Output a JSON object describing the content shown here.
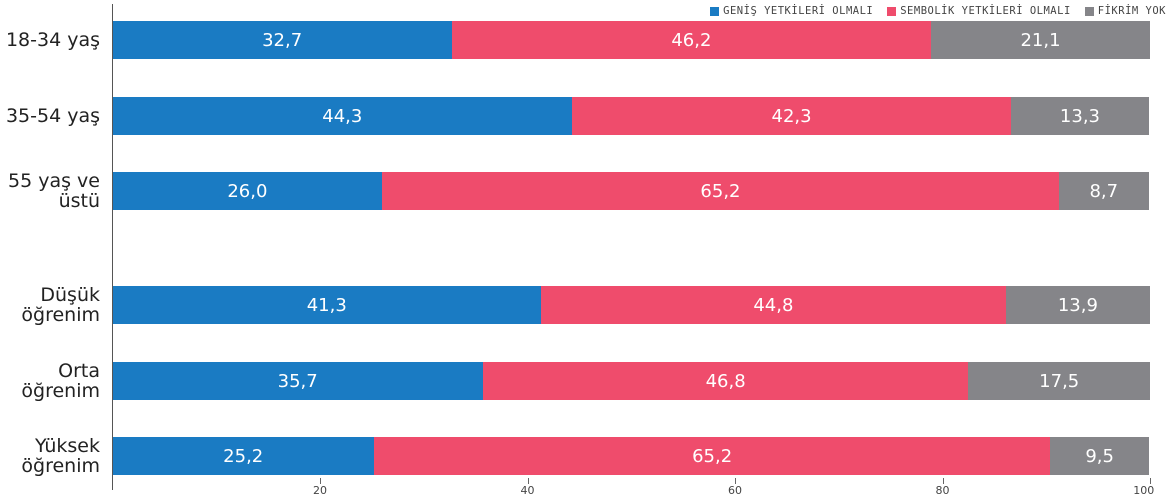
{
  "chart_data": {
    "type": "stacked-bar-horizontal",
    "categories": [
      "18-34 yaş",
      "35-54 yaş",
      "55 yaş ve üstü",
      "Düşük öğrenim",
      "Orta öğrenim",
      "Yüksek öğrenim"
    ],
    "series": [
      {
        "name": "GENİŞ YETKİLERİ OLMALI",
        "color": "#1a7bc3",
        "values": [
          32.7,
          44.3,
          26.0,
          41.3,
          35.7,
          25.2
        ],
        "value_labels": [
          "32,7",
          "44,3",
          "26,0",
          "41,3",
          "35,7",
          "25,2"
        ]
      },
      {
        "name": "SEMBOLİK YETKİLERİ OLMALI",
        "color": "#ef4c6c",
        "values": [
          46.2,
          42.3,
          65.2,
          44.8,
          46.8,
          65.2
        ],
        "value_labels": [
          "46,2",
          "42,3",
          "65,2",
          "44,8",
          "46,8",
          "65,2"
        ]
      },
      {
        "name": "FİKRİM YOK",
        "color": "#858589",
        "values": [
          21.1,
          13.3,
          8.7,
          13.9,
          17.5,
          9.5
        ],
        "value_labels": [
          "21,1",
          "13,3",
          "8,7",
          "13,9",
          "17,5",
          "9,5"
        ]
      }
    ],
    "xlim": [
      0,
      100
    ],
    "xticks": [
      20,
      40,
      60,
      80,
      100
    ],
    "legend": "top-right"
  }
}
